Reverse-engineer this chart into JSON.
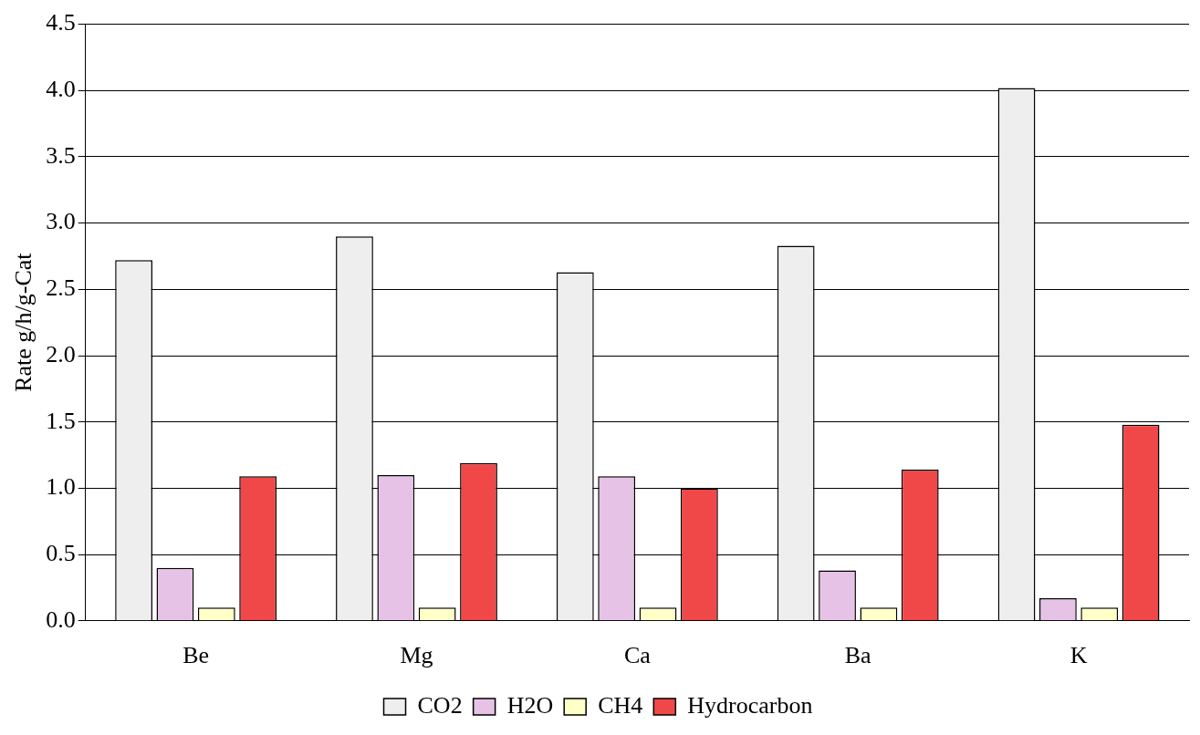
{
  "chart_data": {
    "type": "bar",
    "ylabel": "Rate g/h/g-Cat",
    "categories": [
      "Be",
      "Mg",
      "Ca",
      "Ba",
      "K"
    ],
    "series": [
      {
        "name": "CO2",
        "color": "#eeeeee",
        "values": [
          2.72,
          2.9,
          2.63,
          2.83,
          4.02
        ]
      },
      {
        "name": "H2O",
        "color": "#e6c3e6",
        "values": [
          0.4,
          1.1,
          1.09,
          0.38,
          0.17
        ]
      },
      {
        "name": "CH4",
        "color": "#ffffc8",
        "values": [
          0.1,
          0.1,
          0.1,
          0.1,
          0.1
        ]
      },
      {
        "name": "Hydrocarbon",
        "color": "#f04848",
        "values": [
          1.09,
          1.19,
          1.0,
          1.14,
          1.48
        ]
      }
    ],
    "ylim": [
      0,
      4.5
    ],
    "yticks": [
      {
        "value": 0,
        "label": "0.0"
      },
      {
        "value": 0.5,
        "label": "0.5"
      },
      {
        "value": 1,
        "label": "1.0"
      },
      {
        "value": 1.5,
        "label": "1.5"
      },
      {
        "value": 2,
        "label": "2.0"
      },
      {
        "value": 2.5,
        "label": "2.5"
      },
      {
        "value": 3,
        "label": "3.0"
      },
      {
        "value": 3.5,
        "label": "3.5"
      },
      {
        "value": 4,
        "label": "4.0"
      },
      {
        "value": 4.5,
        "label": "4.5"
      }
    ],
    "grid": "y",
    "legend": "bottom"
  }
}
